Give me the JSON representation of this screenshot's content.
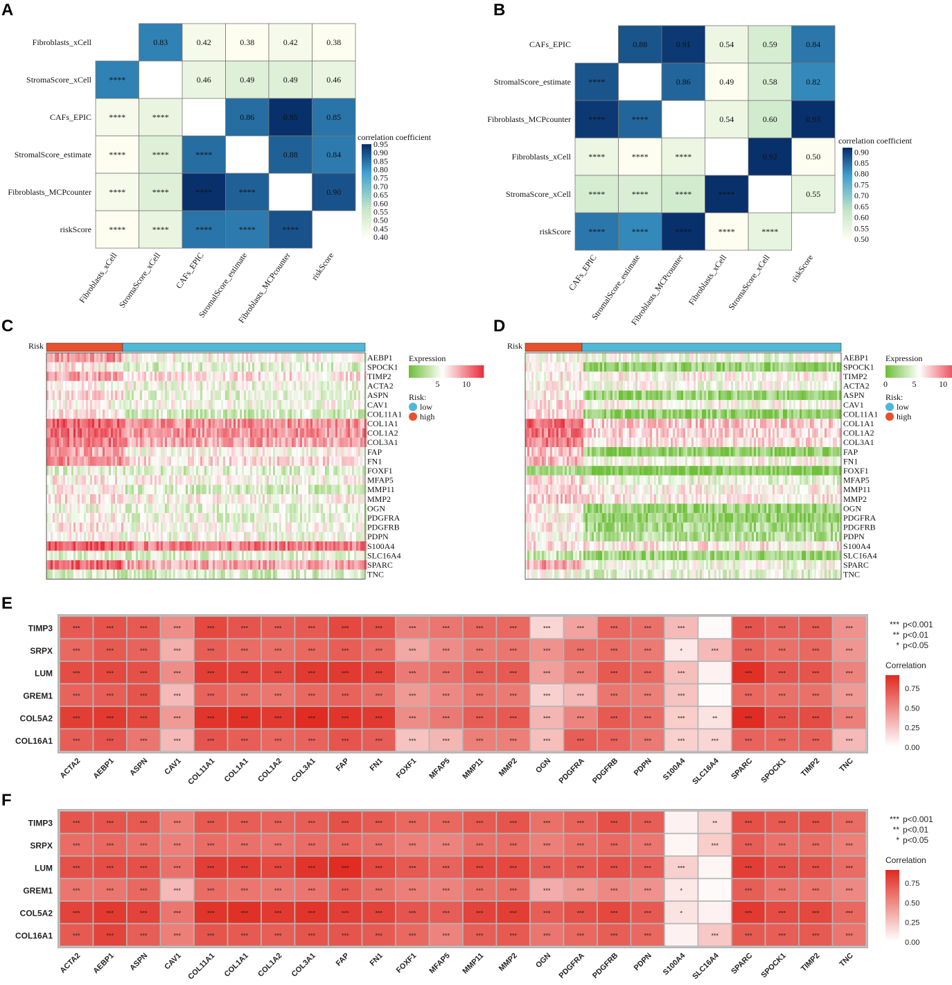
{
  "chart_data": [
    {
      "panel": "A",
      "type": "heatmap",
      "subtype": "correlation-triangle",
      "labels": [
        "Fibroblasts_xCell",
        "StromaScore_xCell",
        "CAFs_EPIC",
        "StromalScore_estimate",
        "Fibroblasts_MCPcounter",
        "riskScore"
      ],
      "upper_values": [
        [
          null,
          0.83,
          0.42,
          0.38,
          0.42,
          0.38
        ],
        [
          null,
          null,
          0.46,
          0.49,
          0.49,
          0.46
        ],
        [
          null,
          null,
          null,
          0.86,
          0.95,
          0.85
        ],
        [
          null,
          null,
          null,
          null,
          0.88,
          0.84
        ],
        [
          null,
          null,
          null,
          null,
          null,
          0.9
        ],
        [
          null,
          null,
          null,
          null,
          null,
          null
        ]
      ],
      "lower_labels": [
        [
          "",
          "",
          "",
          "",
          "",
          ""
        ],
        [
          "****",
          "",
          "",
          "",
          "",
          ""
        ],
        [
          "****",
          "****",
          "",
          "",
          "",
          ""
        ],
        [
          "****",
          "****",
          "****",
          "",
          "",
          ""
        ],
        [
          "****",
          "****",
          "****",
          "****",
          "",
          ""
        ],
        [
          "****",
          "****",
          "****",
          "****",
          "****",
          ""
        ]
      ],
      "legend_title": "correlation coefficient",
      "legend_range": [
        0.4,
        0.95
      ],
      "legend_ticks": [
        "0.95",
        "0.90",
        "0.85",
        "0.80",
        "0.75",
        "0.70",
        "0.65",
        "0.60",
        "0.55",
        "0.50",
        "0.45",
        "0.40"
      ]
    },
    {
      "panel": "B",
      "type": "heatmap",
      "subtype": "correlation-triangle",
      "labels": [
        "CAFs_EPIC",
        "StromalScore_estimate",
        "Fibroblasts_MCPcounter",
        "Fibroblasts_xCell",
        "StromaScore_xCell",
        "riskScore"
      ],
      "upper_values": [
        [
          null,
          0.88,
          0.91,
          0.54,
          0.59,
          0.84
        ],
        [
          null,
          null,
          0.86,
          0.49,
          0.58,
          0.82
        ],
        [
          null,
          null,
          null,
          0.54,
          0.6,
          0.93
        ],
        [
          null,
          null,
          null,
          null,
          0.92,
          0.5
        ],
        [
          null,
          null,
          null,
          null,
          null,
          0.55
        ],
        [
          null,
          null,
          null,
          null,
          null,
          null
        ]
      ],
      "lower_labels": [
        [
          "",
          "",
          "",
          "",
          "",
          ""
        ],
        [
          "****",
          "",
          "",
          "",
          "",
          ""
        ],
        [
          "****",
          "****",
          "",
          "",
          "",
          ""
        ],
        [
          "****",
          "****",
          "****",
          "",
          "",
          ""
        ],
        [
          "****",
          "****",
          "****",
          "****",
          "",
          ""
        ],
        [
          "****",
          "****",
          "****",
          "****",
          "****",
          ""
        ]
      ],
      "legend_title": "correlation coefficient",
      "legend_range": [
        0.5,
        0.92
      ],
      "legend_ticks": [
        "0.90",
        "0.85",
        "0.80",
        "0.75",
        "0.70",
        "0.65",
        "0.60",
        "0.55",
        "0.50"
      ]
    },
    {
      "panel": "C",
      "type": "heatmap",
      "subtype": "expression",
      "annotation_label": "Risk",
      "genes": [
        "AEBP1",
        "SPOCK1",
        "TIMP2",
        "ACTA2",
        "ASPN",
        "CAV1",
        "COL11A1",
        "COL1A1",
        "COL1A2",
        "COL3A1",
        "FAP",
        "FN1",
        "FOXF1",
        "MFAP5",
        "MMP11",
        "MMP2",
        "OGN",
        "PDGFRA",
        "PDGFRB",
        "PDPN",
        "S100A4",
        "SLC16A4",
        "SPARC",
        "TNC"
      ],
      "high_fraction": 0.24,
      "mean_expression_high": [
        9.5,
        6.5,
        9.0,
        6.0,
        7.0,
        6.2,
        6.5,
        11.5,
        11.0,
        10.5,
        8.8,
        9.6,
        4.8,
        6.5,
        6.0,
        6.8,
        5.2,
        6.0,
        6.8,
        5.8,
        11.8,
        4.8,
        11.0,
        4.5
      ],
      "mean_expression_low": [
        6.0,
        4.5,
        6.8,
        5.0,
        4.8,
        5.6,
        4.0,
        9.5,
        9.5,
        8.8,
        5.8,
        7.0,
        4.5,
        6.0,
        4.2,
        6.0,
        4.8,
        5.0,
        5.6,
        5.4,
        10.2,
        4.8,
        8.8,
        4.2
      ],
      "legend_title": "Expression",
      "legend_ticks": [
        "5",
        "10"
      ],
      "risk_legend_title": "Risk:",
      "risk_levels": [
        "low",
        "high"
      ],
      "risk_colors": [
        "#4fb8d6",
        "#e8512d"
      ]
    },
    {
      "panel": "D",
      "type": "heatmap",
      "subtype": "expression",
      "annotation_label": "Risk",
      "genes": [
        "AEBP1",
        "SPOCK1",
        "TIMP2",
        "ACTA2",
        "ASPN",
        "CAV1",
        "COL11A1",
        "COL1A1",
        "COL1A2",
        "COL3A1",
        "FAP",
        "FN1",
        "FOXF1",
        "MFAP5",
        "MMP11",
        "MMP2",
        "OGN",
        "PDGFRA",
        "PDGFRB",
        "PDPN",
        "S100A4",
        "SLC16A4",
        "SPARC",
        "TNC"
      ],
      "high_fraction": 0.18,
      "mean_expression_high": [
        5.5,
        6.0,
        6.5,
        6.2,
        6.5,
        6.8,
        7.0,
        11.0,
        10.5,
        10.0,
        8.2,
        8.0,
        2.5,
        7.0,
        7.2,
        7.6,
        6.2,
        6.0,
        6.5,
        6.0,
        7.2,
        3.5,
        9.0,
        5.5
      ],
      "mean_expression_low": [
        5.2,
        1.8,
        6.0,
        5.6,
        2.0,
        5.8,
        1.8,
        7.8,
        7.2,
        6.8,
        1.4,
        5.8,
        0.8,
        5.0,
        6.0,
        6.4,
        2.0,
        1.6,
        2.4,
        3.0,
        6.6,
        2.0,
        5.4,
        4.8
      ],
      "legend_title": "Expression",
      "legend_ticks": [
        "0",
        "5",
        "10"
      ],
      "risk_legend_title": "Risk:",
      "risk_levels": [
        "low",
        "high"
      ],
      "risk_colors": [
        "#4fb8d6",
        "#e8512d"
      ]
    },
    {
      "panel": "E",
      "type": "heatmap",
      "subtype": "gene-correlation",
      "rows": [
        "TIMP3",
        "SRPX",
        "LUM",
        "GREM1",
        "COL5A2",
        "COL16A1"
      ],
      "cols": [
        "ACTA2",
        "AEBP1",
        "ASPN",
        "CAV1",
        "COL11A1",
        "COL1A1",
        "COL1A2",
        "COL3A1",
        "FAP",
        "FN1",
        "FOXF1",
        "MFAP5",
        "MMP11",
        "MMP2",
        "OGN",
        "PDGFRA",
        "PDGFRB",
        "PDPN",
        "S100A4",
        "SLC16A4",
        "SPARC",
        "SPOCK1",
        "TIMP2",
        "TNC"
      ],
      "values": [
        [
          0.72,
          0.75,
          0.72,
          0.5,
          0.8,
          0.74,
          0.7,
          0.72,
          0.8,
          0.76,
          0.55,
          0.6,
          0.66,
          0.66,
          0.18,
          0.4,
          0.66,
          0.62,
          0.3,
          0.02,
          0.74,
          0.68,
          0.7,
          0.48
        ],
        [
          0.66,
          0.72,
          0.68,
          0.35,
          0.7,
          0.64,
          0.62,
          0.66,
          0.7,
          0.64,
          0.38,
          0.5,
          0.58,
          0.6,
          0.48,
          0.62,
          0.64,
          0.58,
          0.1,
          0.3,
          0.68,
          0.62,
          0.66,
          0.46
        ],
        [
          0.78,
          0.8,
          0.76,
          0.5,
          0.84,
          0.82,
          0.8,
          0.86,
          0.86,
          0.82,
          0.58,
          0.62,
          0.7,
          0.72,
          0.42,
          0.56,
          0.72,
          0.66,
          0.28,
          0.06,
          0.9,
          0.74,
          0.74,
          0.54
        ],
        [
          0.68,
          0.7,
          0.74,
          0.3,
          0.68,
          0.62,
          0.6,
          0.66,
          0.68,
          0.62,
          0.44,
          0.52,
          0.6,
          0.58,
          0.2,
          0.3,
          0.6,
          0.56,
          0.26,
          0.02,
          0.66,
          0.62,
          0.62,
          0.44
        ],
        [
          0.84,
          0.86,
          0.8,
          0.44,
          0.88,
          0.9,
          0.86,
          0.92,
          0.88,
          0.86,
          0.5,
          0.58,
          0.7,
          0.72,
          0.32,
          0.54,
          0.72,
          0.64,
          0.22,
          0.12,
          0.92,
          0.76,
          0.78,
          0.56
        ],
        [
          0.7,
          0.74,
          0.6,
          0.3,
          0.74,
          0.7,
          0.66,
          0.68,
          0.74,
          0.7,
          0.26,
          0.32,
          0.56,
          0.56,
          0.28,
          0.7,
          0.68,
          0.58,
          0.2,
          0.18,
          0.68,
          0.66,
          0.68,
          0.3
        ]
      ],
      "significance": [
        [
          "***",
          "***",
          "***",
          "***",
          "***",
          "***",
          "***",
          "***",
          "***",
          "***",
          "***",
          "***",
          "***",
          "***",
          "***",
          "***",
          "***",
          "***",
          "***",
          "",
          "***",
          "***",
          "***",
          "***"
        ],
        [
          "***",
          "***",
          "***",
          "***",
          "***",
          "***",
          "***",
          "***",
          "***",
          "***",
          "***",
          "***",
          "***",
          "***",
          "***",
          "***",
          "***",
          "***",
          "*",
          "***",
          "***",
          "***",
          "***",
          "***"
        ],
        [
          "***",
          "***",
          "***",
          "***",
          "***",
          "***",
          "***",
          "***",
          "***",
          "***",
          "***",
          "***",
          "***",
          "***",
          "***",
          "***",
          "***",
          "***",
          "***",
          "",
          "***",
          "***",
          "***",
          "***"
        ],
        [
          "***",
          "***",
          "***",
          "***",
          "***",
          "***",
          "***",
          "***",
          "***",
          "***",
          "***",
          "***",
          "***",
          "***",
          "***",
          "***",
          "***",
          "***",
          "***",
          "",
          "***",
          "***",
          "***",
          "***"
        ],
        [
          "***",
          "***",
          "***",
          "***",
          "***",
          "***",
          "***",
          "***",
          "***",
          "***",
          "***",
          "***",
          "***",
          "***",
          "***",
          "***",
          "***",
          "***",
          "***",
          "**",
          "***",
          "***",
          "***",
          "***"
        ],
        [
          "***",
          "***",
          "***",
          "***",
          "***",
          "***",
          "***",
          "***",
          "***",
          "***",
          "***",
          "***",
          "***",
          "***",
          "***",
          "***",
          "***",
          "***",
          "***",
          "***",
          "***",
          "***",
          "***",
          "***"
        ]
      ],
      "sig_legend": [
        [
          "***",
          "p<0.001"
        ],
        [
          "**",
          "p<0.01"
        ],
        [
          "*",
          "p<0.05"
        ]
      ],
      "legend_title": "Correlation",
      "legend_range": [
        0.0,
        0.92
      ],
      "legend_ticks": [
        "0.75",
        "0.50",
        "0.25",
        "0.00"
      ]
    },
    {
      "panel": "F",
      "type": "heatmap",
      "subtype": "gene-correlation",
      "rows": [
        "TIMP3",
        "SRPX",
        "LUM",
        "GREM1",
        "COL5A2",
        "COL16A1"
      ],
      "cols": [
        "ACTA2",
        "AEBP1",
        "ASPN",
        "CAV1",
        "COL11A1",
        "COL1A1",
        "COL1A2",
        "COL3A1",
        "FAP",
        "FN1",
        "FOXF1",
        "MFAP5",
        "MMP11",
        "MMP2",
        "OGN",
        "PDGFRA",
        "PDGFRB",
        "PDPN",
        "S100A4",
        "SLC16A4",
        "SPARC",
        "SPOCK1",
        "TIMP2",
        "TNC"
      ],
      "values": [
        [
          0.74,
          0.74,
          0.72,
          0.56,
          0.72,
          0.7,
          0.68,
          0.7,
          0.76,
          0.72,
          0.66,
          0.66,
          0.72,
          0.74,
          0.62,
          0.68,
          0.76,
          0.7,
          0.06,
          0.18,
          0.76,
          0.72,
          0.74,
          0.64
        ],
        [
          0.64,
          0.66,
          0.62,
          0.56,
          0.64,
          0.62,
          0.6,
          0.64,
          0.66,
          0.62,
          0.56,
          0.54,
          0.62,
          0.64,
          0.56,
          0.62,
          0.66,
          0.6,
          0.04,
          0.22,
          0.7,
          0.62,
          0.64,
          0.56
        ],
        [
          0.76,
          0.78,
          0.76,
          0.62,
          0.84,
          0.84,
          0.8,
          0.88,
          0.94,
          0.8,
          0.72,
          0.68,
          0.8,
          0.8,
          0.7,
          0.72,
          0.76,
          0.7,
          0.2,
          0.04,
          0.84,
          0.76,
          0.76,
          0.64
        ],
        [
          0.6,
          0.6,
          0.66,
          0.3,
          0.64,
          0.6,
          0.58,
          0.6,
          0.7,
          0.62,
          0.56,
          0.54,
          0.62,
          0.64,
          0.36,
          0.44,
          0.52,
          0.48,
          0.1,
          0.02,
          0.7,
          0.6,
          0.6,
          0.52
        ],
        [
          0.82,
          0.86,
          0.82,
          0.6,
          0.88,
          0.9,
          0.86,
          0.88,
          0.84,
          0.82,
          0.74,
          0.7,
          0.82,
          0.84,
          0.7,
          0.76,
          0.8,
          0.72,
          0.12,
          0.06,
          0.86,
          0.78,
          0.8,
          0.66
        ],
        [
          0.72,
          0.82,
          0.7,
          0.56,
          0.74,
          0.72,
          0.7,
          0.74,
          0.74,
          0.72,
          0.66,
          0.54,
          0.7,
          0.72,
          0.6,
          0.66,
          0.7,
          0.66,
          0.06,
          0.24,
          0.72,
          0.7,
          0.72,
          0.6
        ]
      ],
      "significance": [
        [
          "***",
          "***",
          "***",
          "***",
          "***",
          "***",
          "***",
          "***",
          "***",
          "***",
          "***",
          "***",
          "***",
          "***",
          "***",
          "***",
          "***",
          "***",
          "",
          "**",
          "***",
          "***",
          "***",
          "***"
        ],
        [
          "***",
          "***",
          "***",
          "***",
          "***",
          "***",
          "***",
          "***",
          "***",
          "***",
          "***",
          "***",
          "***",
          "***",
          "***",
          "***",
          "***",
          "***",
          "",
          "***",
          "***",
          "***",
          "***",
          "***"
        ],
        [
          "***",
          "***",
          "***",
          "***",
          "***",
          "***",
          "***",
          "***",
          "***",
          "***",
          "***",
          "***",
          "***",
          "***",
          "***",
          "***",
          "***",
          "***",
          "***",
          "",
          "***",
          "***",
          "***",
          "***"
        ],
        [
          "***",
          "***",
          "***",
          "***",
          "***",
          "***",
          "***",
          "***",
          "***",
          "***",
          "***",
          "***",
          "***",
          "***",
          "***",
          "***",
          "***",
          "***",
          "*",
          "",
          "***",
          "***",
          "***",
          "***"
        ],
        [
          "***",
          "***",
          "***",
          "***",
          "***",
          "***",
          "***",
          "***",
          "***",
          "***",
          "***",
          "***",
          "***",
          "***",
          "***",
          "***",
          "***",
          "***",
          "*",
          "",
          "***",
          "***",
          "***",
          "***"
        ],
        [
          "***",
          "***",
          "***",
          "***",
          "***",
          "***",
          "***",
          "***",
          "***",
          "***",
          "***",
          "***",
          "***",
          "***",
          "***",
          "***",
          "***",
          "***",
          "",
          "***",
          "***",
          "***",
          "***",
          "***"
        ]
      ],
      "sig_legend": [
        [
          "***",
          "p<0.001"
        ],
        [
          "**",
          "p<0.01"
        ],
        [
          "*",
          "p<0.05"
        ]
      ],
      "legend_title": "Correlation",
      "legend_range": [
        0.0,
        0.92
      ],
      "legend_ticks": [
        "0.75",
        "0.50",
        "0.25",
        "0.00"
      ]
    }
  ],
  "colors": {
    "corr_low": "#fdfdf0",
    "corr_mid": "#c6e6c6",
    "corr_high_mid": "#3fa0d0",
    "corr_high": "#08306b",
    "expr_low": "#6fbf3a",
    "expr_mid": "#ffffff",
    "expr_high": "#e8303d",
    "red_low": "#ffffff",
    "red_high": "#e02c22",
    "grid_border": "#b5b5b5",
    "risk_low": "#4fb8d6",
    "risk_high": "#e8512d"
  }
}
